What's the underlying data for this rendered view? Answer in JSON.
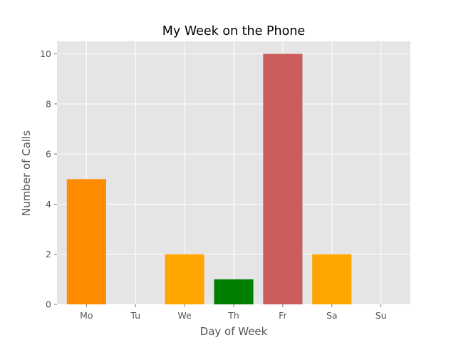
{
  "chart_data": {
    "type": "bar",
    "title": "My Week on the Phone",
    "xlabel": "Day of Week",
    "ylabel": "Number of Calls",
    "categories": [
      "Mo",
      "Tu",
      "We",
      "Th",
      "Fr",
      "Sa",
      "Su"
    ],
    "values": [
      5,
      0,
      2,
      1,
      10,
      2,
      0
    ],
    "bar_colors": [
      "#ff8c00",
      "#ffa500",
      "#ffa500",
      "#008000",
      "#cd5c5c",
      "#ffa500",
      "#ffa500"
    ],
    "ylim": [
      0,
      10.5
    ],
    "yticks": [
      0,
      2,
      4,
      6,
      8,
      10
    ],
    "grid": true,
    "legend": "none",
    "style": {
      "plot_background": "#e5e5e5",
      "grid_color": "#ffffff",
      "text_color": "#555555",
      "title_color": "#000000"
    }
  }
}
